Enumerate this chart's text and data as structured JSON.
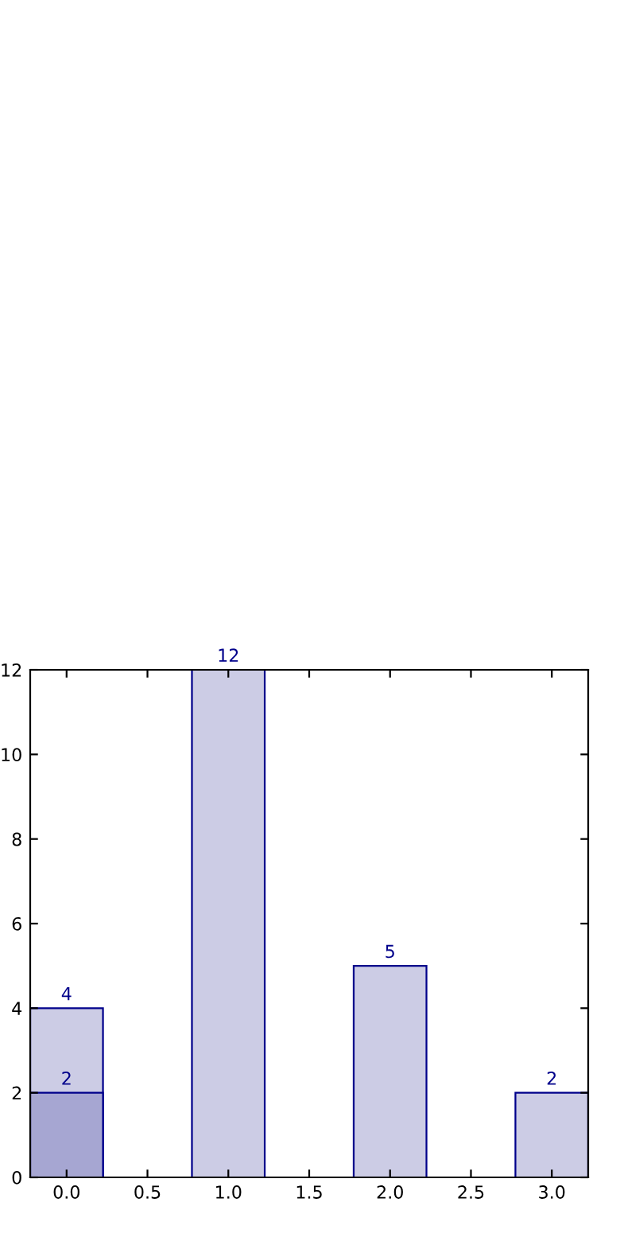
{
  "chart_data": {
    "type": "bar",
    "x": [
      0,
      1,
      2,
      3
    ],
    "series": [
      {
        "color": "#cccce5",
        "values": [
          4,
          12,
          5,
          2
        ]
      },
      {
        "x": [
          0
        ],
        "color": "#a6a6d2",
        "values": [
          2
        ]
      }
    ],
    "xlim": [
      -0.225,
      3.225
    ],
    "ylim": [
      0,
      12
    ],
    "xticks": [
      {
        "value": 0,
        "label": "0.0"
      },
      {
        "value": 0.5,
        "label": "0.5"
      },
      {
        "value": 1,
        "label": "1.0"
      },
      {
        "value": 1.5,
        "label": "1.5"
      },
      {
        "value": 2,
        "label": "2.0"
      },
      {
        "value": 2.5,
        "label": "2.5"
      },
      {
        "value": 3,
        "label": "3.0"
      }
    ],
    "yticks": [
      0,
      2,
      4,
      6,
      8,
      10,
      12
    ],
    "data_labels": true,
    "grid": false,
    "legend": false
  }
}
